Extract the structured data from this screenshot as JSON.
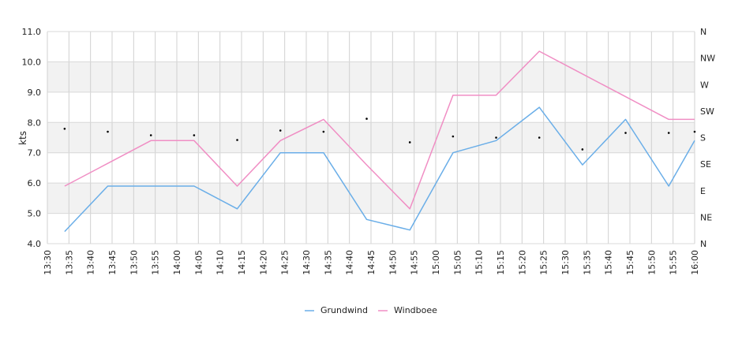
{
  "chart_data": {
    "type": "line",
    "ylabel": "kts",
    "ylim": [
      4.0,
      11.0
    ],
    "y_ticks": [
      "4.0",
      "5.0",
      "6.0",
      "7.0",
      "8.0",
      "9.0",
      "10.0",
      "11.0"
    ],
    "y_tick_values": [
      4,
      5,
      6,
      7,
      8,
      9,
      10,
      11
    ],
    "direction_ticks": [
      "N",
      "NE",
      "E",
      "SE",
      "S",
      "SW",
      "W",
      "NW",
      "N"
    ],
    "x_ticks": [
      "13:30",
      "13:35",
      "13:40",
      "13:45",
      "13:50",
      "13:55",
      "14:00",
      "14:05",
      "14:10",
      "14:15",
      "14:20",
      "14:25",
      "14:30",
      "14:35",
      "14:40",
      "14:45",
      "14:50",
      "14:55",
      "15:00",
      "15:05",
      "15:10",
      "15:15",
      "15:20",
      "15:25",
      "15:30",
      "15:35",
      "15:40",
      "15:45",
      "15:50",
      "15:55",
      "16:00"
    ],
    "x": [
      "13:34",
      "13:44",
      "13:54",
      "14:04",
      "14:14",
      "14:24",
      "14:34",
      "14:44",
      "14:54",
      "15:04",
      "15:14",
      "15:24",
      "15:34",
      "15:44",
      "15:54",
      "16:00"
    ],
    "series": [
      {
        "name": "Grundwind",
        "color": "#6aaee8",
        "values": [
          4.4,
          5.9,
          5.9,
          5.9,
          5.15,
          7.0,
          7.0,
          4.8,
          4.45,
          7.0,
          7.4,
          8.5,
          6.6,
          8.1,
          5.9,
          7.4
        ]
      },
      {
        "name": "Windboee",
        "color": "#f08ec4",
        "values": [
          5.9,
          6.65,
          7.4,
          7.4,
          5.9,
          7.4,
          8.1,
          6.6,
          5.15,
          8.9,
          8.9,
          10.35,
          9.6,
          8.85,
          8.1,
          8.1
        ]
      }
    ],
    "direction_series": {
      "name": "direction",
      "color": "#000000",
      "x": [
        "13:34",
        "13:44",
        "13:54",
        "14:04",
        "14:14",
        "14:24",
        "14:34",
        "14:44",
        "14:54",
        "15:04",
        "15:14",
        "15:24",
        "15:34",
        "15:44",
        "15:54",
        "16:00"
      ],
      "values_deg": [
        195,
        190,
        184,
        184,
        176,
        192,
        190,
        212,
        172,
        182,
        180,
        180,
        160,
        188,
        188,
        190
      ]
    },
    "grid": true,
    "legend_position": "bottom-center"
  }
}
